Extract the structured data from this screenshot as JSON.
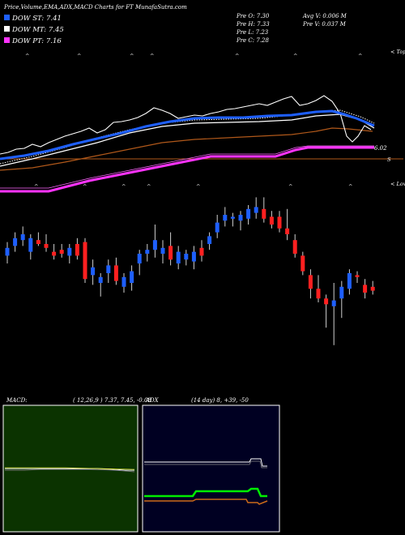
{
  "header": {
    "title": "Price,Volume,EMA,ADX,MACD Charts for FT MunafaSutra.com"
  },
  "legend": [
    {
      "label": "DOW ST: 7.41",
      "color": "#1e5fff"
    },
    {
      "label": "DOW MT: 7.45",
      "color": "#ffffff"
    },
    {
      "label": "DOW PT: 7.16",
      "color": "#ff33ff"
    }
  ],
  "stats": {
    "open": "Pre  O: 7.30",
    "high": "Pre  H: 7.33",
    "low": "Pre  L: 7.23",
    "close": "Pre  C: 7.28",
    "avg_volume": "Avg V: 0.006  M",
    "volume": "Pre  V: 0.037 M"
  },
  "annotations": {
    "tops": "< Tops",
    "lows": "< Lows",
    "price_label": "6.02",
    "price_mark": "S"
  },
  "macd_panel": {
    "label": "MACD:",
    "params": "( 12,26,9 ) 7.37,  7.45,  -0.08"
  },
  "adx_panel": {
    "label": "ADX",
    "params": "(14  day) 8,  +39,  -50"
  },
  "colors": {
    "background": "#000000",
    "up_candle": "#1e5fff",
    "down_candle": "#ff2020",
    "ema_blue": "#1e5fff",
    "ema_white": "#ffffff",
    "ema_brown": "#b0581a",
    "ema_magenta": "#ff33ff",
    "macd_bg": "#0b3300",
    "adx_bg": "#000022",
    "adx_green": "#00ee00"
  },
  "chart_data": {
    "type": "candlestick",
    "candles": [
      {
        "d": "up",
        "o": 7.22,
        "h": 7.29,
        "l": 7.18,
        "c": 7.26
      },
      {
        "d": "up",
        "o": 7.27,
        "h": 7.34,
        "l": 7.24,
        "c": 7.31
      },
      {
        "d": "up",
        "o": 7.3,
        "h": 7.37,
        "l": 7.27,
        "c": 7.33
      },
      {
        "d": "up",
        "o": 7.24,
        "h": 7.33,
        "l": 7.2,
        "c": 7.31
      },
      {
        "d": "down",
        "o": 7.3,
        "h": 7.34,
        "l": 7.27,
        "c": 7.28
      },
      {
        "d": "down",
        "o": 7.28,
        "h": 7.33,
        "l": 7.24,
        "c": 7.26
      },
      {
        "d": "down",
        "o": 7.24,
        "h": 7.28,
        "l": 7.2,
        "c": 7.22
      },
      {
        "d": "down",
        "o": 7.25,
        "h": 7.28,
        "l": 7.21,
        "c": 7.23
      },
      {
        "d": "up",
        "o": 7.22,
        "h": 7.28,
        "l": 7.18,
        "c": 7.26
      },
      {
        "d": "down",
        "o": 7.28,
        "h": 7.31,
        "l": 7.2,
        "c": 7.22
      },
      {
        "d": "down",
        "o": 7.29,
        "h": 7.31,
        "l": 7.08,
        "c": 7.1
      },
      {
        "d": "up",
        "o": 7.12,
        "h": 7.2,
        "l": 7.07,
        "c": 7.16
      },
      {
        "d": "up",
        "o": 7.08,
        "h": 7.13,
        "l": 7.01,
        "c": 7.11
      },
      {
        "d": "up",
        "o": 7.13,
        "h": 7.2,
        "l": 7.08,
        "c": 7.17
      },
      {
        "d": "down",
        "o": 7.17,
        "h": 7.21,
        "l": 7.07,
        "c": 7.09
      },
      {
        "d": "up",
        "o": 7.06,
        "h": 7.13,
        "l": 7.03,
        "c": 7.11
      },
      {
        "d": "up",
        "o": 7.08,
        "h": 7.17,
        "l": 7.04,
        "c": 7.14
      },
      {
        "d": "up",
        "o": 7.18,
        "h": 7.25,
        "l": 7.12,
        "c": 7.23
      },
      {
        "d": "up",
        "o": 7.23,
        "h": 7.28,
        "l": 7.19,
        "c": 7.25
      },
      {
        "d": "up",
        "o": 7.25,
        "h": 7.38,
        "l": 7.21,
        "c": 7.3
      },
      {
        "d": "up",
        "o": 7.23,
        "h": 7.3,
        "l": 7.18,
        "c": 7.26
      },
      {
        "d": "down",
        "o": 7.27,
        "h": 7.34,
        "l": 7.17,
        "c": 7.2
      },
      {
        "d": "up",
        "o": 7.18,
        "h": 7.27,
        "l": 7.15,
        "c": 7.24
      },
      {
        "d": "up",
        "o": 7.2,
        "h": 7.25,
        "l": 7.17,
        "c": 7.23
      },
      {
        "d": "up",
        "o": 7.19,
        "h": 7.27,
        "l": 7.15,
        "c": 7.24
      },
      {
        "d": "down",
        "o": 7.26,
        "h": 7.3,
        "l": 7.19,
        "c": 7.22
      },
      {
        "d": "up",
        "o": 7.28,
        "h": 7.34,
        "l": 7.25,
        "c": 7.32
      },
      {
        "d": "up",
        "o": 7.34,
        "h": 7.43,
        "l": 7.31,
        "c": 7.39
      },
      {
        "d": "up",
        "o": 7.4,
        "h": 7.47,
        "l": 7.37,
        "c": 7.43
      },
      {
        "d": "up",
        "o": 7.41,
        "h": 7.44,
        "l": 7.37,
        "c": 7.42
      },
      {
        "d": "up",
        "o": 7.4,
        "h": 7.45,
        "l": 7.35,
        "c": 7.43
      },
      {
        "d": "up",
        "o": 7.41,
        "h": 7.48,
        "l": 7.38,
        "c": 7.46
      },
      {
        "d": "up",
        "o": 7.44,
        "h": 7.52,
        "l": 7.41,
        "c": 7.47
      },
      {
        "d": "down",
        "o": 7.46,
        "h": 7.52,
        "l": 7.39,
        "c": 7.41
      },
      {
        "d": "down",
        "o": 7.42,
        "h": 7.45,
        "l": 7.36,
        "c": 7.38
      },
      {
        "d": "down",
        "o": 7.42,
        "h": 7.45,
        "l": 7.34,
        "c": 7.36
      },
      {
        "d": "down",
        "o": 7.36,
        "h": 7.46,
        "l": 7.3,
        "c": 7.33
      },
      {
        "d": "down",
        "o": 7.3,
        "h": 7.33,
        "l": 7.21,
        "c": 7.23
      },
      {
        "d": "down",
        "o": 7.22,
        "h": 7.24,
        "l": 7.12,
        "c": 7.14
      },
      {
        "d": "down",
        "o": 7.12,
        "h": 7.15,
        "l": 7.0,
        "c": 7.05
      },
      {
        "d": "down",
        "o": 7.05,
        "h": 7.12,
        "l": 6.98,
        "c": 7.0
      },
      {
        "d": "down",
        "o": 7.0,
        "h": 7.02,
        "l": 6.85,
        "c": 6.97
      },
      {
        "d": "up",
        "o": 6.96,
        "h": 7.08,
        "l": 6.76,
        "c": 6.99
      },
      {
        "d": "up",
        "o": 7.0,
        "h": 7.09,
        "l": 6.9,
        "c": 7.06
      },
      {
        "d": "up",
        "o": 7.05,
        "h": 7.15,
        "l": 7.02,
        "c": 7.13
      },
      {
        "d": "down",
        "o": 7.12,
        "h": 7.14,
        "l": 7.08,
        "c": 7.11
      },
      {
        "d": "down",
        "o": 7.07,
        "h": 7.1,
        "l": 7.0,
        "c": 7.03
      },
      {
        "d": "down",
        "o": 7.06,
        "h": 7.09,
        "l": 7.02,
        "c": 7.04
      }
    ],
    "ema_lines": [
      "DOW ST",
      "DOW MT",
      "DOW PT"
    ]
  }
}
